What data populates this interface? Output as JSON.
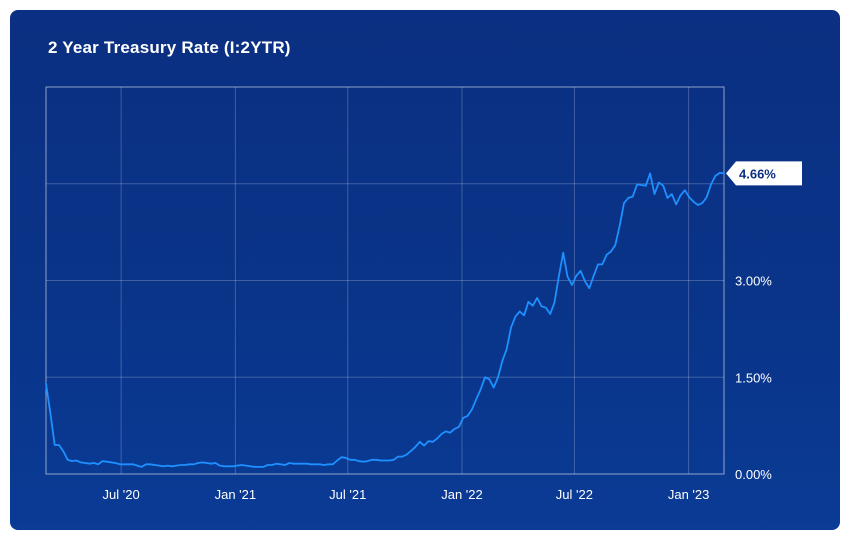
{
  "header": {
    "title": "2 Year Treasury Rate (I:2YTR)"
  },
  "chart_data": {
    "type": "line",
    "title": "2 Year Treasury Rate (I:2YTR)",
    "xlabel": "",
    "ylabel": "",
    "y_unit": "%",
    "xlim": [
      "2020-03-02",
      "2023-02-27"
    ],
    "ylim": [
      0,
      6
    ],
    "y_ticks": [
      {
        "value": 0,
        "label": "0.00%"
      },
      {
        "value": 1.5,
        "label": "1.50%"
      },
      {
        "value": 3,
        "label": "3.00%"
      },
      {
        "value": 4.5,
        "label": ""
      }
    ],
    "x_ticks": [
      {
        "date": "2020-07-01",
        "label": "Jul '20"
      },
      {
        "date": "2021-01-01",
        "label": "Jan '21"
      },
      {
        "date": "2021-07-01",
        "label": "Jul '21"
      },
      {
        "date": "2022-01-01",
        "label": "Jan '22"
      },
      {
        "date": "2022-07-01",
        "label": "Jul '22"
      },
      {
        "date": "2023-01-01",
        "label": "Jan '23"
      }
    ],
    "grid": true,
    "line_color": "#1e90ff",
    "last_value_label": "4.66%",
    "series": [
      {
        "name": "",
        "points": [
          [
            "2020-03-02",
            1.4
          ],
          [
            "2020-03-09",
            0.95
          ],
          [
            "2020-03-16",
            0.45
          ],
          [
            "2020-03-23",
            0.45
          ],
          [
            "2020-03-30",
            0.35
          ],
          [
            "2020-04-06",
            0.22
          ],
          [
            "2020-04-13",
            0.2
          ],
          [
            "2020-04-20",
            0.21
          ],
          [
            "2020-04-27",
            0.18
          ],
          [
            "2020-05-04",
            0.17
          ],
          [
            "2020-05-11",
            0.16
          ],
          [
            "2020-05-18",
            0.17
          ],
          [
            "2020-05-25",
            0.15
          ],
          [
            "2020-06-01",
            0.2
          ],
          [
            "2020-06-08",
            0.19
          ],
          [
            "2020-06-15",
            0.18
          ],
          [
            "2020-06-22",
            0.17
          ],
          [
            "2020-06-29",
            0.15
          ],
          [
            "2020-07-06",
            0.15
          ],
          [
            "2020-07-13",
            0.15
          ],
          [
            "2020-07-20",
            0.15
          ],
          [
            "2020-07-27",
            0.13
          ],
          [
            "2020-08-03",
            0.11
          ],
          [
            "2020-08-10",
            0.15
          ],
          [
            "2020-08-17",
            0.15
          ],
          [
            "2020-08-24",
            0.14
          ],
          [
            "2020-08-31",
            0.13
          ],
          [
            "2020-09-07",
            0.12
          ],
          [
            "2020-09-14",
            0.13
          ],
          [
            "2020-09-21",
            0.12
          ],
          [
            "2020-09-28",
            0.13
          ],
          [
            "2020-10-05",
            0.14
          ],
          [
            "2020-10-12",
            0.14
          ],
          [
            "2020-10-19",
            0.15
          ],
          [
            "2020-10-26",
            0.15
          ],
          [
            "2020-11-02",
            0.17
          ],
          [
            "2020-11-09",
            0.18
          ],
          [
            "2020-11-16",
            0.17
          ],
          [
            "2020-11-23",
            0.16
          ],
          [
            "2020-11-30",
            0.17
          ],
          [
            "2020-12-07",
            0.13
          ],
          [
            "2020-12-14",
            0.12
          ],
          [
            "2020-12-21",
            0.12
          ],
          [
            "2020-12-28",
            0.12
          ],
          [
            "2021-01-04",
            0.13
          ],
          [
            "2021-01-11",
            0.14
          ],
          [
            "2021-01-18",
            0.13
          ],
          [
            "2021-01-25",
            0.12
          ],
          [
            "2021-02-01",
            0.11
          ],
          [
            "2021-02-08",
            0.11
          ],
          [
            "2021-02-15",
            0.11
          ],
          [
            "2021-02-22",
            0.14
          ],
          [
            "2021-03-01",
            0.14
          ],
          [
            "2021-03-08",
            0.16
          ],
          [
            "2021-03-15",
            0.15
          ],
          [
            "2021-03-22",
            0.14
          ],
          [
            "2021-03-29",
            0.17
          ],
          [
            "2021-04-05",
            0.16
          ],
          [
            "2021-04-12",
            0.16
          ],
          [
            "2021-04-19",
            0.16
          ],
          [
            "2021-04-26",
            0.16
          ],
          [
            "2021-05-03",
            0.15
          ],
          [
            "2021-05-10",
            0.15
          ],
          [
            "2021-05-17",
            0.15
          ],
          [
            "2021-05-24",
            0.14
          ],
          [
            "2021-05-31",
            0.15
          ],
          [
            "2021-06-07",
            0.15
          ],
          [
            "2021-06-14",
            0.21
          ],
          [
            "2021-06-21",
            0.26
          ],
          [
            "2021-06-28",
            0.25
          ],
          [
            "2021-07-05",
            0.22
          ],
          [
            "2021-07-12",
            0.22
          ],
          [
            "2021-07-19",
            0.2
          ],
          [
            "2021-07-26",
            0.19
          ],
          [
            "2021-08-02",
            0.2
          ],
          [
            "2021-08-09",
            0.22
          ],
          [
            "2021-08-16",
            0.22
          ],
          [
            "2021-08-23",
            0.21
          ],
          [
            "2021-08-30",
            0.21
          ],
          [
            "2021-09-06",
            0.21
          ],
          [
            "2021-09-13",
            0.22
          ],
          [
            "2021-09-20",
            0.27
          ],
          [
            "2021-09-27",
            0.27
          ],
          [
            "2021-10-04",
            0.3
          ],
          [
            "2021-10-11",
            0.36
          ],
          [
            "2021-10-18",
            0.42
          ],
          [
            "2021-10-25",
            0.5
          ],
          [
            "2021-11-01",
            0.44
          ],
          [
            "2021-11-08",
            0.51
          ],
          [
            "2021-11-15",
            0.5
          ],
          [
            "2021-11-22",
            0.55
          ],
          [
            "2021-11-29",
            0.62
          ],
          [
            "2021-12-06",
            0.66
          ],
          [
            "2021-12-13",
            0.64
          ],
          [
            "2021-12-20",
            0.7
          ],
          [
            "2021-12-27",
            0.73
          ],
          [
            "2022-01-03",
            0.87
          ],
          [
            "2022-01-10",
            0.9
          ],
          [
            "2022-01-17",
            1.0
          ],
          [
            "2022-01-24",
            1.16
          ],
          [
            "2022-01-31",
            1.31
          ],
          [
            "2022-02-07",
            1.5
          ],
          [
            "2022-02-14",
            1.47
          ],
          [
            "2022-02-21",
            1.34
          ],
          [
            "2022-02-28",
            1.5
          ],
          [
            "2022-03-07",
            1.75
          ],
          [
            "2022-03-14",
            1.94
          ],
          [
            "2022-03-21",
            2.27
          ],
          [
            "2022-03-28",
            2.44
          ],
          [
            "2022-04-04",
            2.52
          ],
          [
            "2022-04-11",
            2.46
          ],
          [
            "2022-04-18",
            2.67
          ],
          [
            "2022-04-25",
            2.61
          ],
          [
            "2022-05-02",
            2.73
          ],
          [
            "2022-05-09",
            2.6
          ],
          [
            "2022-05-16",
            2.58
          ],
          [
            "2022-05-23",
            2.48
          ],
          [
            "2022-05-30",
            2.66
          ],
          [
            "2022-06-06",
            3.06
          ],
          [
            "2022-06-13",
            3.43
          ],
          [
            "2022-06-20",
            3.06
          ],
          [
            "2022-06-27",
            2.93
          ],
          [
            "2022-07-04",
            3.07
          ],
          [
            "2022-07-11",
            3.15
          ],
          [
            "2022-07-18",
            2.99
          ],
          [
            "2022-07-25",
            2.88
          ],
          [
            "2022-08-01",
            3.07
          ],
          [
            "2022-08-08",
            3.25
          ],
          [
            "2022-08-15",
            3.25
          ],
          [
            "2022-08-22",
            3.4
          ],
          [
            "2022-08-29",
            3.45
          ],
          [
            "2022-09-05",
            3.55
          ],
          [
            "2022-09-12",
            3.85
          ],
          [
            "2022-09-19",
            4.2
          ],
          [
            "2022-09-26",
            4.28
          ],
          [
            "2022-10-03",
            4.3
          ],
          [
            "2022-10-10",
            4.49
          ],
          [
            "2022-10-17",
            4.48
          ],
          [
            "2022-10-24",
            4.47
          ],
          [
            "2022-10-31",
            4.66
          ],
          [
            "2022-11-07",
            4.34
          ],
          [
            "2022-11-14",
            4.52
          ],
          [
            "2022-11-21",
            4.47
          ],
          [
            "2022-11-28",
            4.28
          ],
          [
            "2022-12-05",
            4.34
          ],
          [
            "2022-12-12",
            4.18
          ],
          [
            "2022-12-19",
            4.32
          ],
          [
            "2022-12-26",
            4.4
          ],
          [
            "2023-01-02",
            4.29
          ],
          [
            "2023-01-09",
            4.22
          ],
          [
            "2023-01-16",
            4.17
          ],
          [
            "2023-01-23",
            4.2
          ],
          [
            "2023-01-30",
            4.29
          ],
          [
            "2023-02-06",
            4.49
          ],
          [
            "2023-02-13",
            4.62
          ],
          [
            "2023-02-20",
            4.67
          ],
          [
            "2023-02-27",
            4.66
          ]
        ]
      }
    ]
  }
}
